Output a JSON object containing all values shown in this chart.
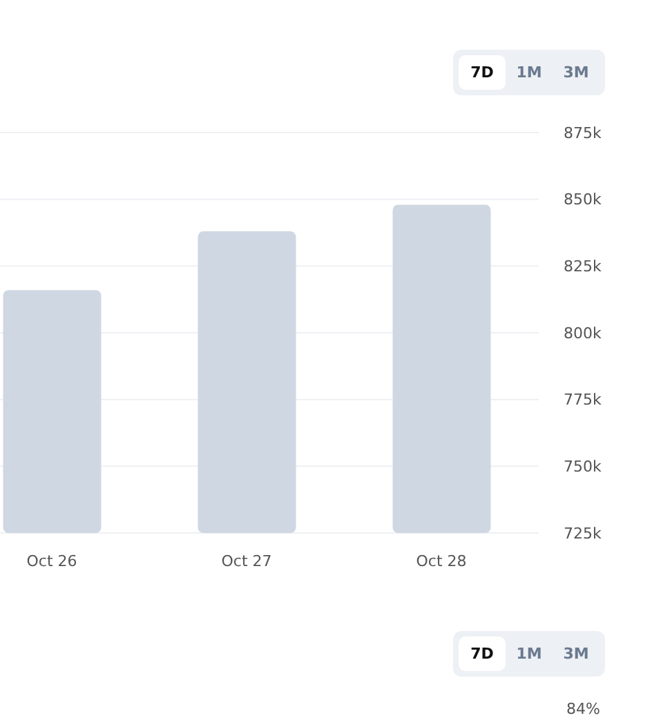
{
  "chart_data": [
    {
      "type": "bar",
      "categories": [
        "Oct 26",
        "Oct 27",
        "Oct 28"
      ],
      "values": [
        816000,
        838000,
        848000
      ],
      "color": "#cfd7e3",
      "ylim": [
        725000,
        875000
      ],
      "yticks": [
        {
          "value": 725000,
          "label": "725k"
        },
        {
          "value": 750000,
          "label": "750k"
        },
        {
          "value": 775000,
          "label": "775k"
        },
        {
          "value": 800000,
          "label": "800k"
        },
        {
          "value": 825000,
          "label": "825k"
        },
        {
          "value": 850000,
          "label": "850k"
        },
        {
          "value": 875000,
          "label": "875k"
        }
      ],
      "grid": "y",
      "annotations": [
        "7D",
        "1M",
        "3M"
      ]
    },
    {
      "type": "other",
      "annotations": [
        "7D",
        "1M",
        "3M",
        "84%"
      ]
    }
  ]
}
